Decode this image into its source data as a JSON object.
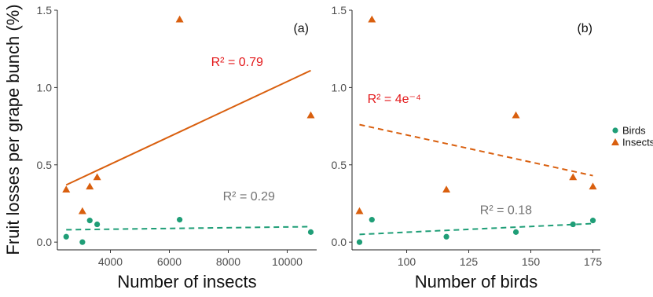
{
  "shared": {
    "ylabel": "Fruit losses per grape bunch (%)",
    "colors": {
      "birds": "#1f9e77",
      "insects": "#d95f0e",
      "r2_insects": "#e31a1c",
      "r2_birds": "#737373"
    }
  },
  "legend": {
    "items": [
      {
        "label": "Birds",
        "marker": "circle",
        "color": "#1f9e77"
      },
      {
        "label": "Insects",
        "marker": "triangle",
        "color": "#d95f0e"
      }
    ]
  },
  "chart_data": [
    {
      "type": "scatter",
      "panel": "(a)",
      "xlabel": "Number of insects",
      "xlim": [
        2200,
        11000
      ],
      "ylim": [
        -0.05,
        1.5
      ],
      "xticks": [
        4000,
        6000,
        8000,
        10000
      ],
      "xtick_labels": [
        "4000",
        "6000",
        "8000",
        "10000"
      ],
      "yticks": [
        0.0,
        0.5,
        1.0,
        1.5
      ],
      "ytick_labels": [
        "0.0",
        "0.5",
        "1.0",
        "1.5"
      ],
      "series": [
        {
          "name": "Insects",
          "marker": "triangle",
          "x": [
            2500,
            3050,
            3300,
            3550,
            6350,
            10800
          ],
          "y": [
            0.34,
            0.2,
            0.36,
            0.42,
            1.44,
            0.82
          ],
          "fit": {
            "style": "solid",
            "x": [
              2500,
              10800
            ],
            "y": [
              0.37,
              1.11
            ],
            "r2_label": "R² = 0.79",
            "r2_pos": [
              8300,
              1.14
            ]
          }
        },
        {
          "name": "Birds",
          "marker": "circle",
          "x": [
            2500,
            3050,
            3300,
            3550,
            6350,
            10800
          ],
          "y": [
            0.035,
            0.0,
            0.14,
            0.115,
            0.145,
            0.065
          ],
          "fit": {
            "style": "dashed",
            "x": [
              2500,
              10800
            ],
            "y": [
              0.08,
              0.1
            ],
            "r2_label": "R² = 0.29",
            "r2_pos": [
              8700,
              0.27
            ]
          }
        }
      ]
    },
    {
      "type": "scatter",
      "panel": "(b)",
      "xlabel": "Number of birds",
      "xlim": [
        78,
        178
      ],
      "ylim": [
        -0.05,
        1.5
      ],
      "xticks": [
        100,
        125,
        150,
        175
      ],
      "xtick_labels": [
        "100",
        "125",
        "150",
        "175"
      ],
      "yticks": [
        0.0,
        0.5,
        1.0,
        1.5
      ],
      "ytick_labels": [
        "0.0",
        "0.5",
        "1.0",
        "1.5"
      ],
      "series": [
        {
          "name": "Insects",
          "marker": "triangle",
          "x": [
            81,
            86,
            116,
            144,
            167,
            175
          ],
          "y": [
            0.2,
            1.44,
            0.34,
            0.82,
            0.42,
            0.36
          ],
          "fit": {
            "style": "dashed",
            "x": [
              81,
              175
            ],
            "y": [
              0.76,
              0.43
            ],
            "r2_label": "R² = 4e⁻⁴",
            "r2_pos": [
              95,
              0.9
            ]
          }
        },
        {
          "name": "Birds",
          "marker": "circle",
          "x": [
            81,
            86,
            116,
            144,
            167,
            175
          ],
          "y": [
            0.0,
            0.145,
            0.035,
            0.065,
            0.115,
            0.14
          ],
          "fit": {
            "style": "dashed",
            "x": [
              81,
              175
            ],
            "y": [
              0.05,
              0.12
            ],
            "r2_label": "R² = 0.18",
            "r2_pos": [
              140,
              0.18
            ]
          }
        }
      ]
    }
  ]
}
